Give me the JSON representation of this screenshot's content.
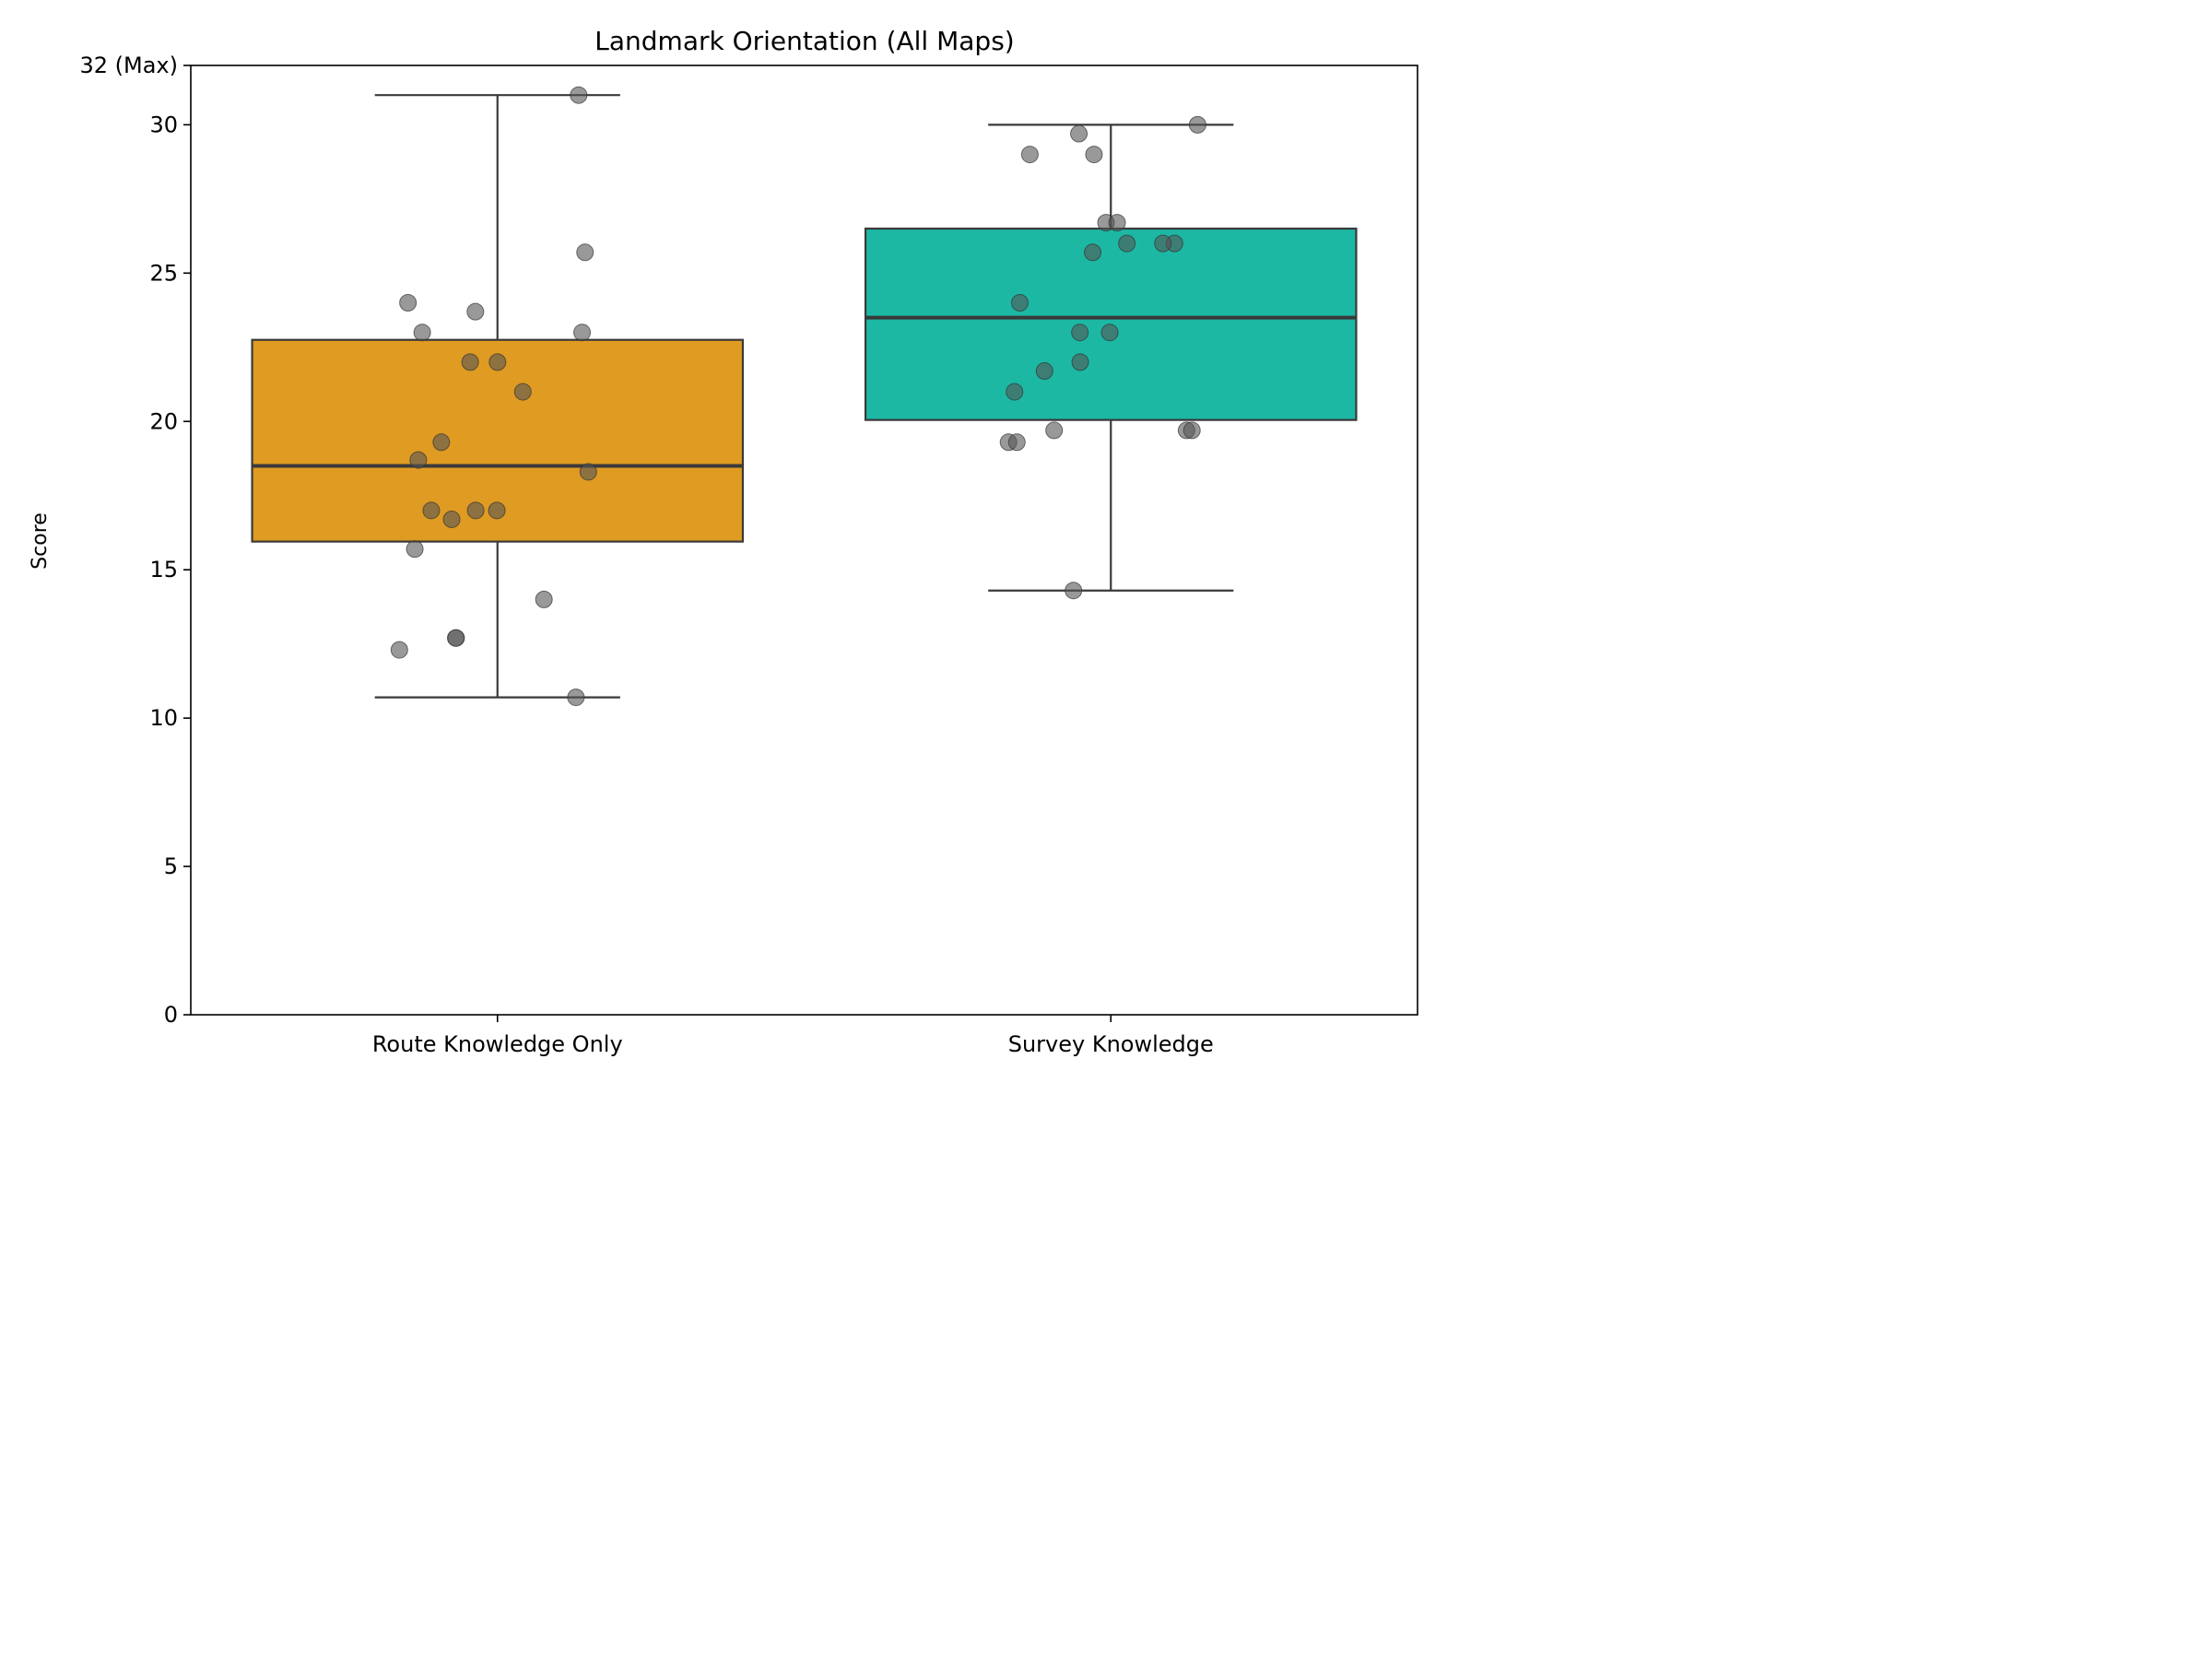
{
  "chart_data": {
    "type": "box",
    "title": "Landmark Orientation (All Maps)",
    "xlabel": "",
    "ylabel": "Score",
    "ylim": [
      0,
      32
    ],
    "yticks": [
      {
        "value": 0,
        "label": "0"
      },
      {
        "value": 5,
        "label": "5"
      },
      {
        "value": 10,
        "label": "10"
      },
      {
        "value": 15,
        "label": "15"
      },
      {
        "value": 20,
        "label": "20"
      },
      {
        "value": 25,
        "label": "25"
      },
      {
        "value": 30,
        "label": "30"
      },
      {
        "value": 32,
        "label": "32 (Max)"
      }
    ],
    "grid": false,
    "legend": "none",
    "categories": [
      "Route Knowledge Only",
      "Survey Knowledge"
    ],
    "boxes": [
      {
        "category": "Route Knowledge Only",
        "color": "#E09B22",
        "whisker_low": 10.7,
        "q1": 15.95,
        "median": 18.5,
        "q3": 22.75,
        "whisker_high": 31.0,
        "points": [
          31.0,
          25.7,
          24.0,
          23.7,
          23.0,
          23.0,
          22.0,
          22.0,
          21.0,
          19.3,
          18.7,
          18.3,
          17.0,
          17.0,
          17.0,
          16.7,
          15.7,
          14.0,
          12.7,
          12.7,
          12.3,
          10.7
        ]
      },
      {
        "category": "Survey Knowledge",
        "color": "#1CB8A4",
        "whisker_low": 14.3,
        "q1": 20.05,
        "median": 23.5,
        "q3": 26.5,
        "whisker_high": 30.0,
        "points": [
          30.0,
          29.7,
          29.0,
          29.0,
          26.7,
          26.7,
          26.0,
          26.0,
          26.0,
          25.7,
          24.0,
          23.0,
          23.0,
          22.0,
          21.7,
          21.0,
          19.7,
          19.7,
          19.7,
          19.3,
          19.3,
          14.3
        ]
      }
    ],
    "point_color": "#555555"
  }
}
